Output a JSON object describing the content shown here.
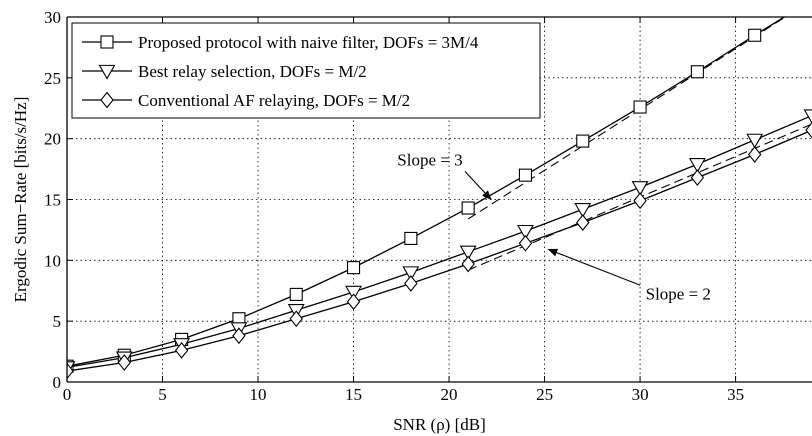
{
  "chart_data": {
    "type": "line",
    "xlabel": "SNR (ρ) [dB]",
    "ylabel": "Ergodic Sum−Rate [bits/s/Hz]",
    "xlim": [
      0,
      39
    ],
    "ylim": [
      0,
      30
    ],
    "xticks": [
      0,
      5,
      10,
      15,
      20,
      25,
      30,
      35
    ],
    "yticks": [
      0,
      5,
      10,
      15,
      20,
      25,
      30
    ],
    "grid": true,
    "legend_position": "top-left",
    "x": [
      0,
      3,
      6,
      9,
      12,
      15,
      18,
      21,
      24,
      27,
      30,
      33,
      36,
      39
    ],
    "series": [
      {
        "name": "Proposed protocol with naive filter, DOFs = 3M/4",
        "marker": "square",
        "values": [
          1.3,
          2.2,
          3.5,
          5.2,
          7.2,
          9.4,
          11.8,
          14.3,
          17.0,
          19.8,
          22.6,
          25.5,
          28.5,
          31.4
        ]
      },
      {
        "name": "Best relay selection, DOFs = M/2",
        "marker": "triangle-down",
        "values": [
          1.2,
          2.0,
          3.1,
          4.4,
          5.9,
          7.4,
          9.0,
          10.7,
          12.4,
          14.2,
          16.0,
          17.9,
          19.9,
          21.9
        ]
      },
      {
        "name": "Conventional AF relaying, DOFs = M/2",
        "marker": "diamond",
        "values": [
          0.9,
          1.6,
          2.6,
          3.8,
          5.2,
          6.6,
          8.1,
          9.7,
          11.4,
          13.1,
          14.9,
          16.8,
          18.7,
          20.7
        ]
      }
    ],
    "reference_lines": [
      {
        "x": [
          21,
          39
        ],
        "y": [
          13.4,
          31.4
        ]
      },
      {
        "x": [
          21,
          39
        ],
        "y": [
          9.2,
          21.2
        ]
      }
    ],
    "annotations": [
      {
        "text": "Slope = 3",
        "x": 19.0,
        "y": 17.8,
        "arrow_to": [
          22.2,
          15.0
        ]
      },
      {
        "text": "Slope = 2",
        "x": 32.0,
        "y": 6.8,
        "arrow_to": [
          25.2,
          10.9
        ]
      }
    ]
  }
}
